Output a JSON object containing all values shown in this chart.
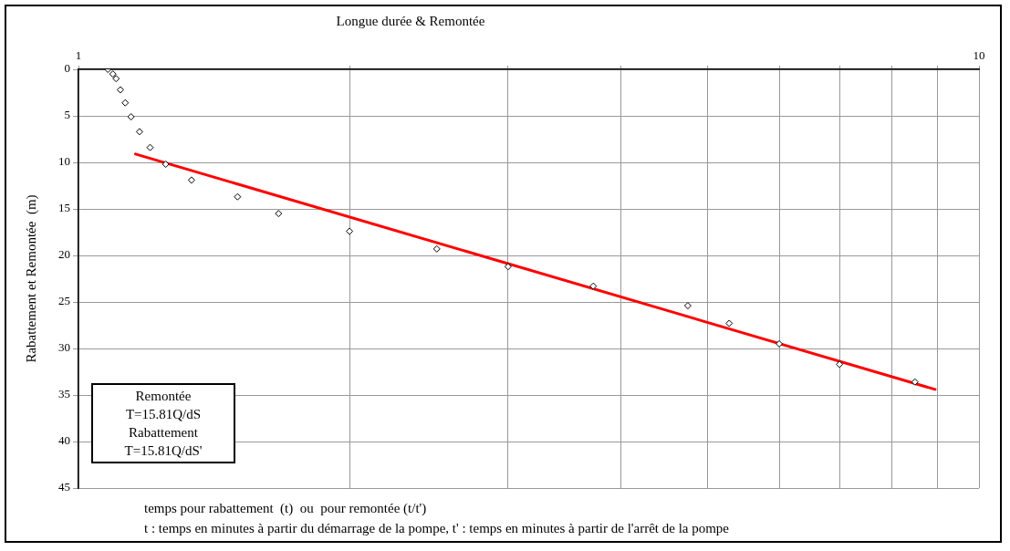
{
  "chart_data": {
    "type": "scatter",
    "title": "Longue durée & Remontée",
    "xlabel": "temps pour rabattement  (t)  ou  pour remontée (t/t')",
    "ylabel": "Rabattement et Remontée  (m)",
    "annotations": [
      "Remontée\nT=15.81Q/dS\nRabattement\nT=15.81Q/dS'",
      "t : temps en minutes à partir du démarrage de la pompe, t' : temps en minutes à partir de l'arrêt de la pompe"
    ],
    "log": "x",
    "xlim": [
      1,
      10
    ],
    "xticks": [
      1,
      {
        "value": 2,
        "label": null
      },
      {
        "value": 3,
        "label": null
      },
      {
        "value": 4,
        "label": null
      },
      {
        "value": 5,
        "label": null
      },
      {
        "value": 6,
        "label": null
      },
      {
        "value": 7,
        "label": null
      },
      {
        "value": 8,
        "label": null
      },
      {
        "value": 9,
        "label": null
      },
      10
    ],
    "ylim": [
      45,
      0
    ],
    "yticks": [
      0,
      5,
      10,
      15,
      20,
      25,
      30,
      35,
      40,
      45
    ],
    "grid": true,
    "legend": false,
    "marker": "diamond",
    "series": [
      {
        "type": "scatter",
        "color": "#000000",
        "x": [
          1.078,
          1.092,
          1.101,
          1.113,
          1.127,
          1.144,
          1.169,
          1.201,
          1.25,
          1.335,
          1.502,
          1.668,
          2.0,
          2.5,
          3.0,
          3.73,
          4.75,
          5.28,
          6.0,
          7.0,
          8.49
        ],
        "values": [
          0,
          0.5,
          1,
          2.2,
          3.6,
          5.1,
          6.7,
          8.4,
          10.2,
          11.9,
          13.7,
          15.5,
          17.4,
          19.3,
          21.2,
          23.3,
          25.4,
          27.3,
          29.5,
          31.7,
          33.6
        ]
      },
      {
        "type": "line",
        "color": "#ff0000",
        "x": [
          1.157,
          8.94
        ],
        "values": [
          9.1,
          34.4
        ],
        "marker": "none",
        "line_style": "solid"
      }
    ]
  }
}
